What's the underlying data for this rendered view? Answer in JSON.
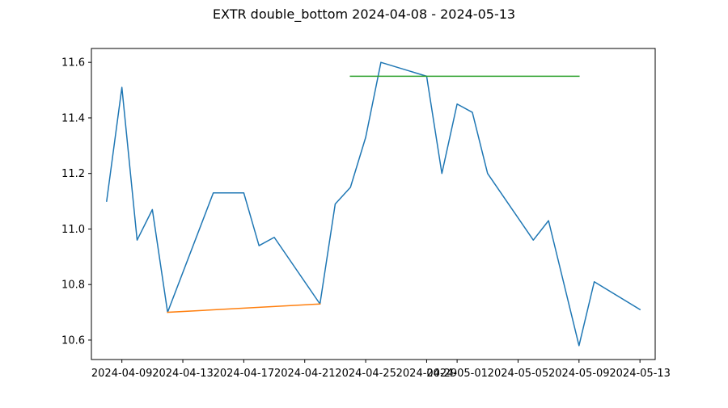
{
  "chart_data": {
    "type": "line",
    "title": "EXTR double_bottom 2024-04-08 - 2024-05-13",
    "xlabel": "",
    "ylabel": "",
    "xlim": [
      "2024-04-07",
      "2024-05-14"
    ],
    "ylim": [
      10.53,
      11.65
    ],
    "grid": false,
    "x_ticks": [
      "2024-04-09",
      "2024-04-13",
      "2024-04-17",
      "2024-04-21",
      "2024-04-25",
      "2024-04-29",
      "2024-05-01",
      "2024-05-05",
      "2024-05-09",
      "2024-05-13"
    ],
    "y_ticks": [
      10.6,
      10.8,
      11.0,
      11.2,
      11.4,
      11.6
    ],
    "y_tick_labels": [
      "10.6",
      "10.8",
      "11.0",
      "11.2",
      "11.4",
      "11.6"
    ],
    "series": [
      {
        "color": "#1f77b4",
        "points": [
          {
            "x": "2024-04-08",
            "y": 11.1
          },
          {
            "x": "2024-04-09",
            "y": 11.51
          },
          {
            "x": "2024-04-10",
            "y": 10.96
          },
          {
            "x": "2024-04-11",
            "y": 11.07
          },
          {
            "x": "2024-04-12",
            "y": 10.7
          },
          {
            "x": "2024-04-15",
            "y": 11.13
          },
          {
            "x": "2024-04-16",
            "y": 11.13
          },
          {
            "x": "2024-04-17",
            "y": 11.13
          },
          {
            "x": "2024-04-18",
            "y": 10.94
          },
          {
            "x": "2024-04-19",
            "y": 10.97
          },
          {
            "x": "2024-04-22",
            "y": 10.73
          },
          {
            "x": "2024-04-23",
            "y": 11.09
          },
          {
            "x": "2024-04-24",
            "y": 11.15
          },
          {
            "x": "2024-04-25",
            "y": 11.33
          },
          {
            "x": "2024-04-26",
            "y": 11.6
          },
          {
            "x": "2024-04-29",
            "y": 11.55
          },
          {
            "x": "2024-04-30",
            "y": 11.2
          },
          {
            "x": "2024-05-01",
            "y": 11.45
          },
          {
            "x": "2024-05-02",
            "y": 11.42
          },
          {
            "x": "2024-05-03",
            "y": 11.2
          },
          {
            "x": "2024-05-06",
            "y": 10.96
          },
          {
            "x": "2024-05-07",
            "y": 11.03
          },
          {
            "x": "2024-05-09",
            "y": 10.58
          },
          {
            "x": "2024-05-10",
            "y": 10.81
          },
          {
            "x": "2024-05-13",
            "y": 10.71
          }
        ]
      },
      {
        "color": "#ff7f0e",
        "points": [
          {
            "x": "2024-04-12",
            "y": 10.7
          },
          {
            "x": "2024-04-22",
            "y": 10.73
          }
        ]
      },
      {
        "color": "#2ca02c",
        "points": [
          {
            "x": "2024-04-24",
            "y": 11.55
          },
          {
            "x": "2024-05-09",
            "y": 11.55
          }
        ]
      }
    ]
  }
}
